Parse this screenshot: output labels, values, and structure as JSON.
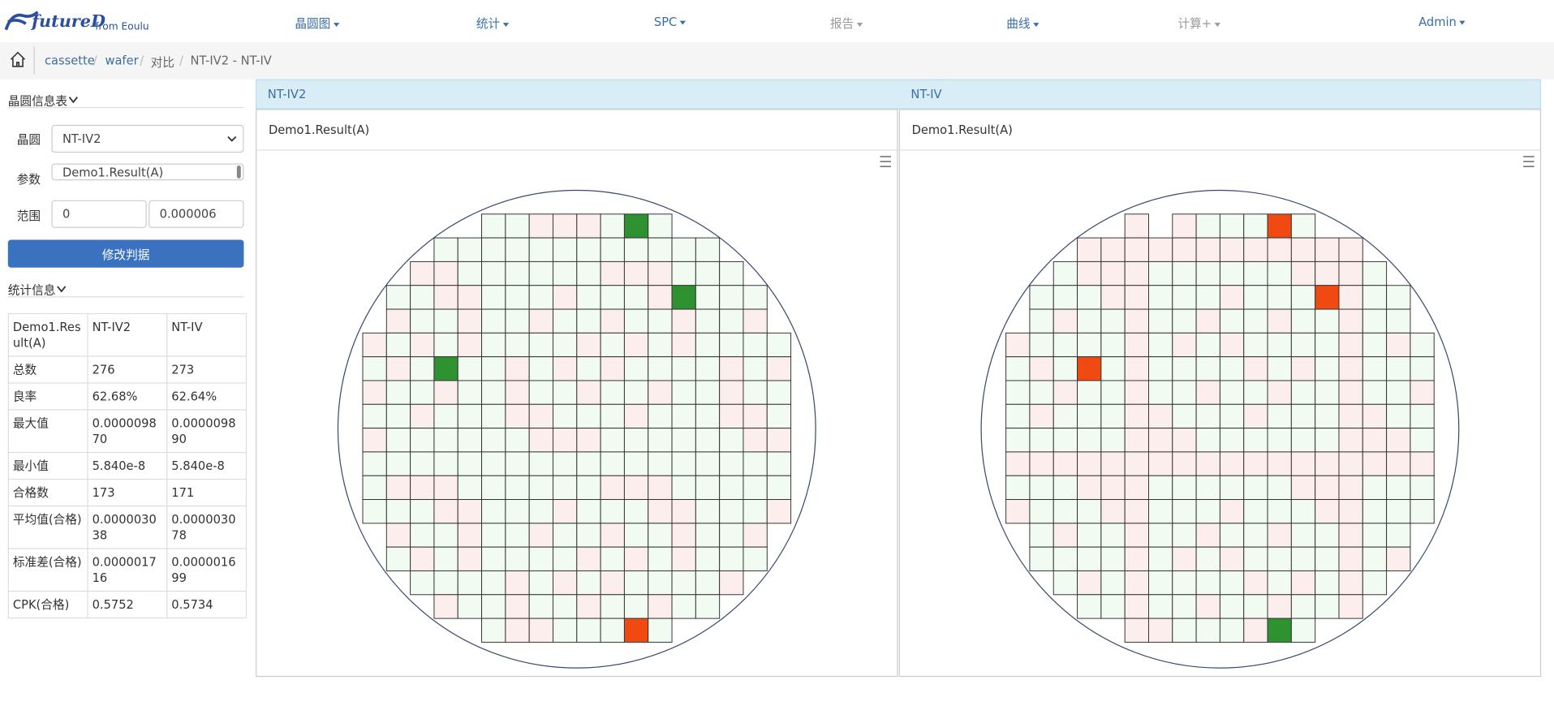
{
  "nav": {
    "logo": "futureD",
    "logo_sub": "from Eoulu",
    "items": [
      "晶圆图",
      "统计",
      "SPC",
      "报告",
      "曲线",
      "计算+",
      "Admin"
    ]
  },
  "breadcrumb": [
    "cassette",
    "wafer",
    "对比",
    "NT-IV2 - NT-IV"
  ],
  "sidebar": {
    "info_title": "晶圆信息表",
    "wafer_label": "晶圆",
    "wafer_value": "NT-IV2",
    "param_label": "参数",
    "param_value": "Demo1.Result(A)",
    "range_label": "范围",
    "range_min": "0",
    "range_max": "0.000006",
    "button": "修改判据",
    "stats_title": "统计信息"
  },
  "table": {
    "header": [
      "Demo1.Result(A)",
      "NT-IV2",
      "NT-IV"
    ],
    "rows": [
      [
        "总数",
        "276",
        "273"
      ],
      [
        "良率",
        "62.68%",
        "62.64%"
      ],
      [
        "最大值",
        "0.000009870",
        "0.000009890"
      ],
      [
        "最小值",
        "5.840e-8",
        "5.840e-8"
      ],
      [
        "合格数",
        "173",
        "171"
      ],
      [
        "平均值(合格)",
        "0.000003038",
        "0.000003078"
      ],
      [
        "标准差(合格)",
        "0.000001716",
        "0.000001699"
      ],
      [
        "CPK(合格)",
        "0.5752",
        "0.5734"
      ]
    ]
  },
  "panels": [
    {
      "title": "NT-IV2",
      "param": "Demo1.Result(A)"
    },
    {
      "title": "NT-IV",
      "param": "Demo1.Result(A)"
    }
  ]
}
